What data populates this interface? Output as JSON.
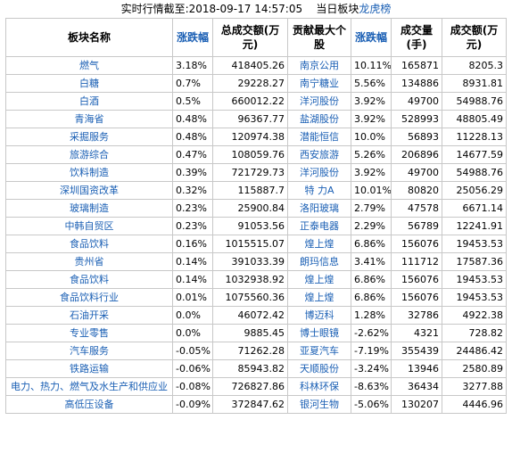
{
  "header": {
    "time": "实时行情截至:2018-09-17 14:57:05",
    "label": "当日板块",
    "link": "龙虎榜"
  },
  "table": {
    "columns": [
      "板块名称",
      "涨跌幅",
      "总成交额(万元)",
      "贡献最大个股",
      "涨跌幅",
      "成交量(手)",
      "成交额(万元)"
    ],
    "rows": [
      [
        "燃气",
        "3.18%",
        "418405.26",
        "南京公用",
        "10.11%",
        "165871",
        "8205.3"
      ],
      [
        "白糖",
        "0.7%",
        "29228.27",
        "南宁糖业",
        "5.56%",
        "134886",
        "8931.81"
      ],
      [
        "白酒",
        "0.5%",
        "660012.22",
        "洋河股份",
        "3.92%",
        "49700",
        "54988.76"
      ],
      [
        "青海省",
        "0.48%",
        "96367.77",
        "盐湖股份",
        "3.92%",
        "528993",
        "48805.49"
      ],
      [
        "采掘服务",
        "0.48%",
        "120974.38",
        "潜能恒信",
        "10.0%",
        "56893",
        "11228.13"
      ],
      [
        "旅游综合",
        "0.47%",
        "108059.76",
        "西安旅游",
        "5.26%",
        "206896",
        "14677.59"
      ],
      [
        "饮料制造",
        "0.39%",
        "721729.73",
        "洋河股份",
        "3.92%",
        "49700",
        "54988.76"
      ],
      [
        "深圳国资改革",
        "0.32%",
        "115887.7",
        "特 力A",
        "10.01%",
        "80820",
        "25056.29"
      ],
      [
        "玻璃制造",
        "0.23%",
        "25900.84",
        "洛阳玻璃",
        "2.79%",
        "47578",
        "6671.14"
      ],
      [
        "中韩自贸区",
        "0.23%",
        "91053.56",
        "正泰电器",
        "2.29%",
        "56789",
        "12241.91"
      ],
      [
        "食品饮料",
        "0.16%",
        "1015515.07",
        "煌上煌",
        "6.86%",
        "156076",
        "19453.53"
      ],
      [
        "贵州省",
        "0.14%",
        "391033.39",
        "朗玛信息",
        "3.41%",
        "111712",
        "17587.36"
      ],
      [
        "食品饮料",
        "0.14%",
        "1032938.92",
        "煌上煌",
        "6.86%",
        "156076",
        "19453.53"
      ],
      [
        "食品饮料行业",
        "0.01%",
        "1075560.36",
        "煌上煌",
        "6.86%",
        "156076",
        "19453.53"
      ],
      [
        "石油开采",
        "0.0%",
        "46072.42",
        "博迈科",
        "1.28%",
        "32786",
        "4922.38"
      ],
      [
        "专业零售",
        "0.0%",
        "9885.45",
        "博士眼镜",
        "-2.62%",
        "4321",
        "728.82"
      ],
      [
        "汽车服务",
        "-0.05%",
        "71262.28",
        "亚夏汽车",
        "-7.19%",
        "355439",
        "24486.42"
      ],
      [
        "铁路运输",
        "-0.06%",
        "85943.82",
        "天顺股份",
        "-3.24%",
        "13946",
        "2580.89"
      ],
      [
        "电力、热力、燃气及水生产和供应业",
        "-0.08%",
        "726827.86",
        "科林环保",
        "-8.63%",
        "36434",
        "3277.88"
      ],
      [
        "高低压设备",
        "-0.09%",
        "372847.62",
        "银河生物",
        "-5.06%",
        "130207",
        "4446.96"
      ]
    ]
  }
}
